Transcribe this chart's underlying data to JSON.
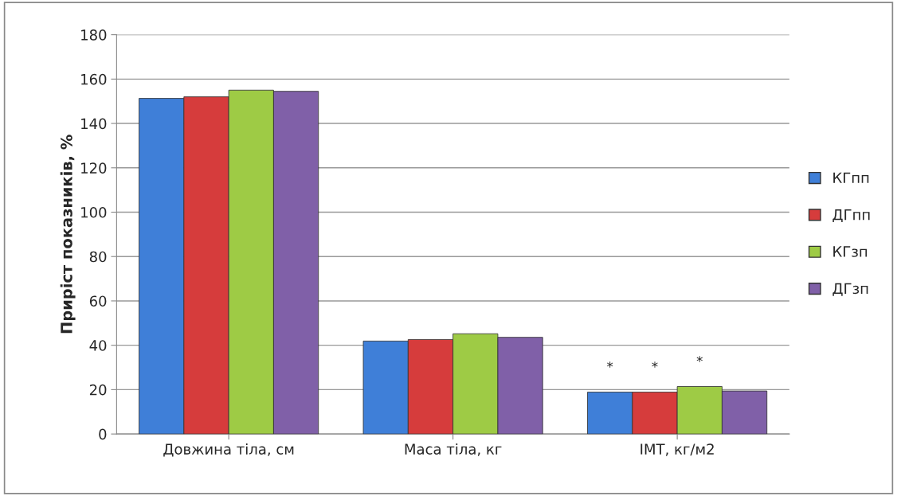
{
  "chart_data": {
    "type": "bar",
    "ylabel": "Приріст показників, %",
    "categories": [
      "Довжина тіла, см",
      "Маса тіла, кг",
      "ІМТ, кг/м2"
    ],
    "series": [
      {
        "name": "КГпп",
        "color": "#3f7fd8",
        "values": [
          151.3,
          41.9,
          18.9
        ]
      },
      {
        "name": "ДГпп",
        "color": "#d63c3c",
        "values": [
          152,
          42.6,
          18.9
        ]
      },
      {
        "name": "КГзп",
        "color": "#9ecb45",
        "values": [
          155,
          45.2,
          21.4
        ]
      },
      {
        "name": "ДГзп",
        "color": "#8060a8",
        "values": [
          154.5,
          43.6,
          19.4
        ]
      }
    ],
    "annotations": [
      "*",
      "*",
      "*"
    ],
    "ylim": [
      0,
      180
    ],
    "yticks": [
      0,
      20,
      40,
      60,
      80,
      100,
      120,
      140,
      160,
      180
    ],
    "grid": "y",
    "legend": "right"
  }
}
